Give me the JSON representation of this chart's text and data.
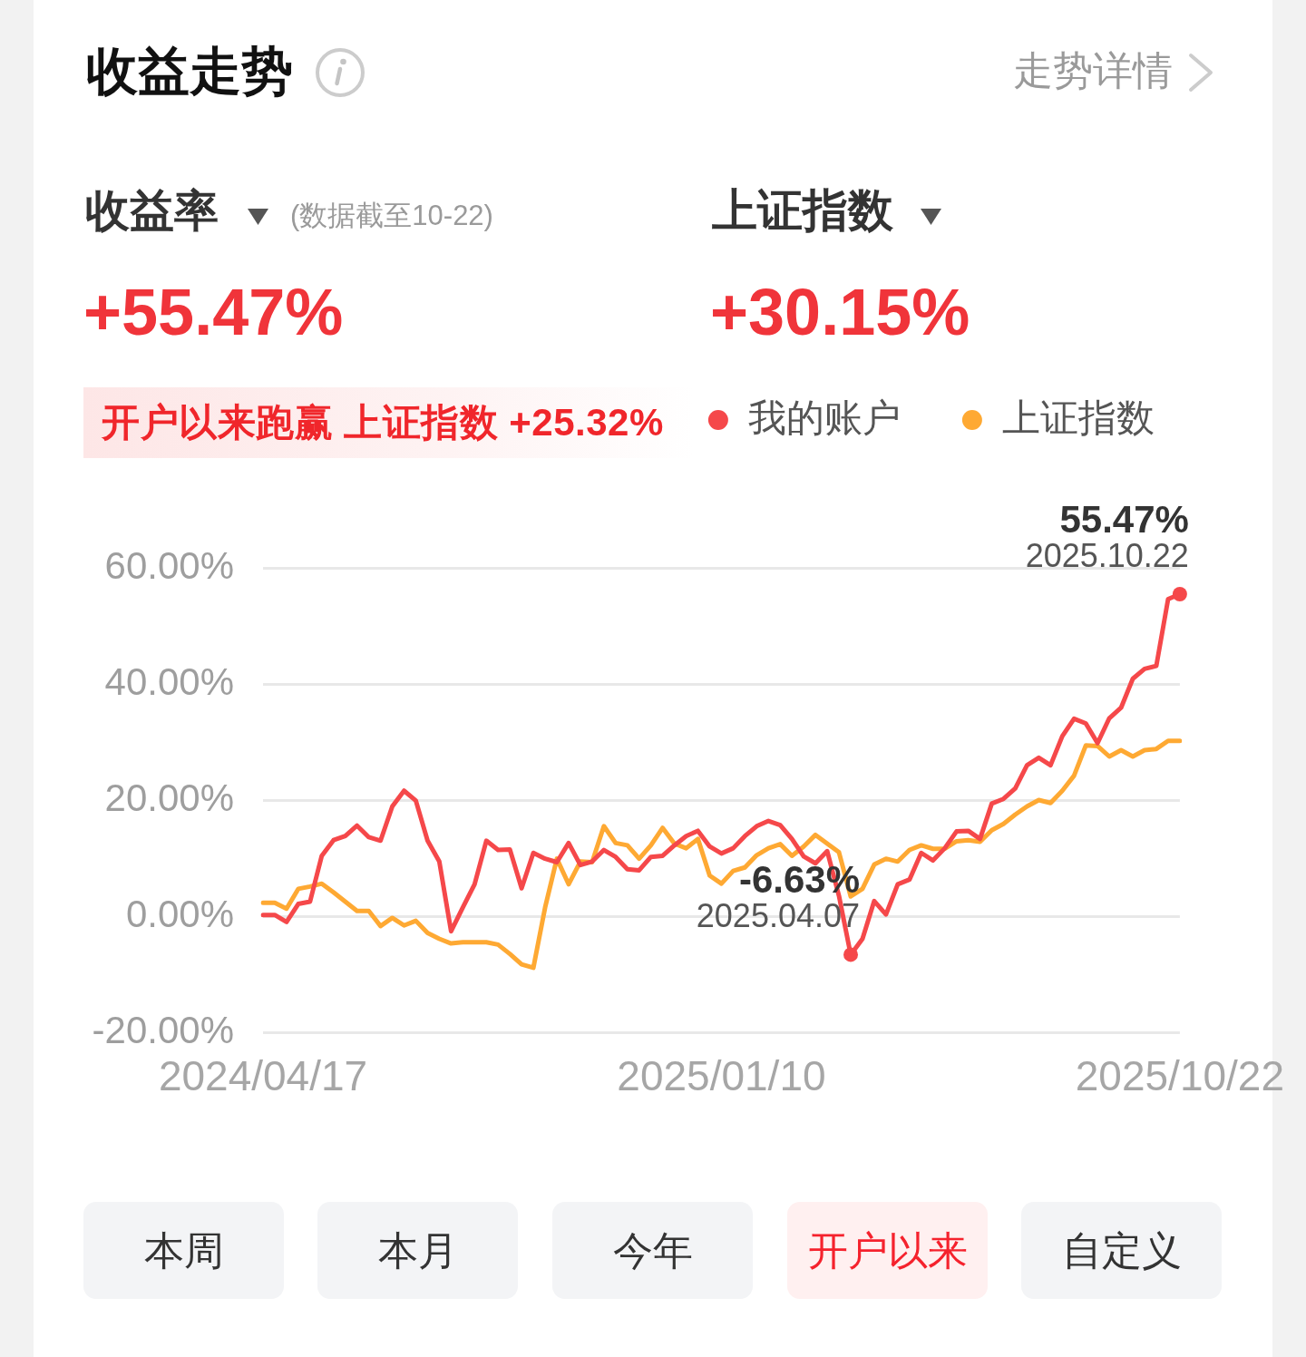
{
  "chart_data": {
    "type": "line",
    "title": "收益走势",
    "categories": [
      "2024/04/17",
      null,
      null,
      null,
      null,
      null,
      null,
      null,
      null,
      null,
      null,
      null,
      null,
      null,
      null,
      null,
      null,
      null,
      null,
      null,
      null,
      null,
      null,
      null,
      null,
      null,
      null,
      null,
      null,
      null,
      null,
      null,
      null,
      null,
      null,
      null,
      null,
      null,
      null,
      "2025/01/10",
      null,
      null,
      null,
      null,
      null,
      null,
      null,
      null,
      null,
      null,
      null,
      null,
      null,
      null,
      null,
      null,
      null,
      null,
      null,
      null,
      null,
      null,
      null,
      null,
      null,
      null,
      null,
      null,
      null,
      null,
      null,
      null,
      null,
      null,
      null,
      null,
      null,
      null,
      "2025/10/22"
    ],
    "series": [
      {
        "name": "我的账户",
        "color": "#f5484a",
        "values": [
          0.2,
          0.2,
          -1.0,
          2.1,
          2.5,
          10.4,
          13.1,
          13.8,
          15.6,
          13.6,
          13.0,
          18.9,
          21.6,
          19.9,
          13.0,
          9.4,
          -2.6,
          1.5,
          5.5,
          13.0,
          11.4,
          11.5,
          4.8,
          10.9,
          9.9,
          9.3,
          12.6,
          8.8,
          9.4,
          11.4,
          10.2,
          8.1,
          7.9,
          10.2,
          10.4,
          12.2,
          13.8,
          14.7,
          12.0,
          10.8,
          11.7,
          13.8,
          15.5,
          16.4,
          15.7,
          13.3,
          10.3,
          9.1,
          11.2,
          3.5,
          -6.63,
          -3.9,
          2.6,
          0.3,
          5.5,
          6.3,
          10.9,
          9.6,
          11.7,
          14.6,
          14.7,
          13.3,
          19.4,
          20.2,
          22.0,
          26.0,
          27.3,
          26.0,
          31.0,
          34.0,
          33.2,
          29.8,
          34.1,
          35.9,
          40.9,
          42.6,
          43.1,
          54.6,
          55.47
        ],
        "value_labels": [
          null,
          null,
          null,
          null,
          null,
          null,
          null,
          null,
          null,
          null,
          null,
          null,
          null,
          null,
          null,
          null,
          null,
          null,
          null,
          null,
          null,
          null,
          null,
          null,
          null,
          null,
          null,
          null,
          null,
          null,
          null,
          null,
          null,
          null,
          null,
          null,
          null,
          null,
          null,
          null,
          null,
          null,
          null,
          null,
          null,
          null,
          null,
          null,
          null,
          null,
          "-6.63%",
          null,
          null,
          null,
          null,
          null,
          null,
          null,
          null,
          null,
          null,
          null,
          null,
          null,
          null,
          null,
          null,
          null,
          null,
          null,
          null,
          null,
          null,
          null,
          null,
          null,
          null,
          null,
          "55.47%"
        ]
      },
      {
        "name": "上证指数",
        "color": "#fea933",
        "values": [
          2.3,
          2.3,
          1.3,
          4.7,
          5.1,
          5.6,
          4.1,
          2.5,
          0.9,
          0.9,
          -1.7,
          -0.3,
          -1.6,
          -0.8,
          -2.9,
          -3.9,
          -4.7,
          -4.5,
          -4.5,
          -4.5,
          -4.9,
          -6.5,
          -8.3,
          -8.9,
          1.5,
          9.9,
          5.5,
          9.4,
          9.3,
          15.5,
          12.6,
          12.2,
          9.9,
          12.2,
          15.2,
          12.5,
          11.7,
          13.3,
          7.0,
          5.6,
          7.8,
          8.4,
          10.5,
          11.7,
          12.4,
          10.4,
          12.0,
          14.0,
          12.5,
          11.0,
          3.4,
          4.7,
          8.9,
          9.9,
          9.4,
          11.4,
          12.2,
          11.6,
          11.6,
          12.9,
          13.1,
          12.8,
          14.8,
          15.9,
          17.5,
          18.9,
          20.0,
          19.5,
          21.6,
          24.2,
          29.4,
          29.3,
          27.5,
          28.6,
          27.5,
          28.6,
          28.8,
          30.2,
          30.2
        ]
      }
    ],
    "ylim": [
      -20,
      60
    ],
    "yticks": [
      {
        "value": -20,
        "label": "-20.00%"
      },
      {
        "value": 0,
        "label": "0.00%"
      },
      {
        "value": 20,
        "label": "20.00%"
      },
      {
        "value": 40,
        "label": "40.00%"
      },
      {
        "value": 60,
        "label": "60.00%"
      }
    ],
    "grid": "y",
    "legend": "top right",
    "marker": "none",
    "line_style": "solid",
    "annotations": [
      "走势详情",
      "收益率",
      "(数据截至10-22)",
      "上证指数",
      "+55.47%",
      "+30.15%",
      "开户以来跑赢 上证指数 +25.32%",
      "2025.04.07",
      "2025.10.22",
      "本周",
      "本月",
      "今年",
      "开户以来",
      "自定义"
    ]
  }
}
